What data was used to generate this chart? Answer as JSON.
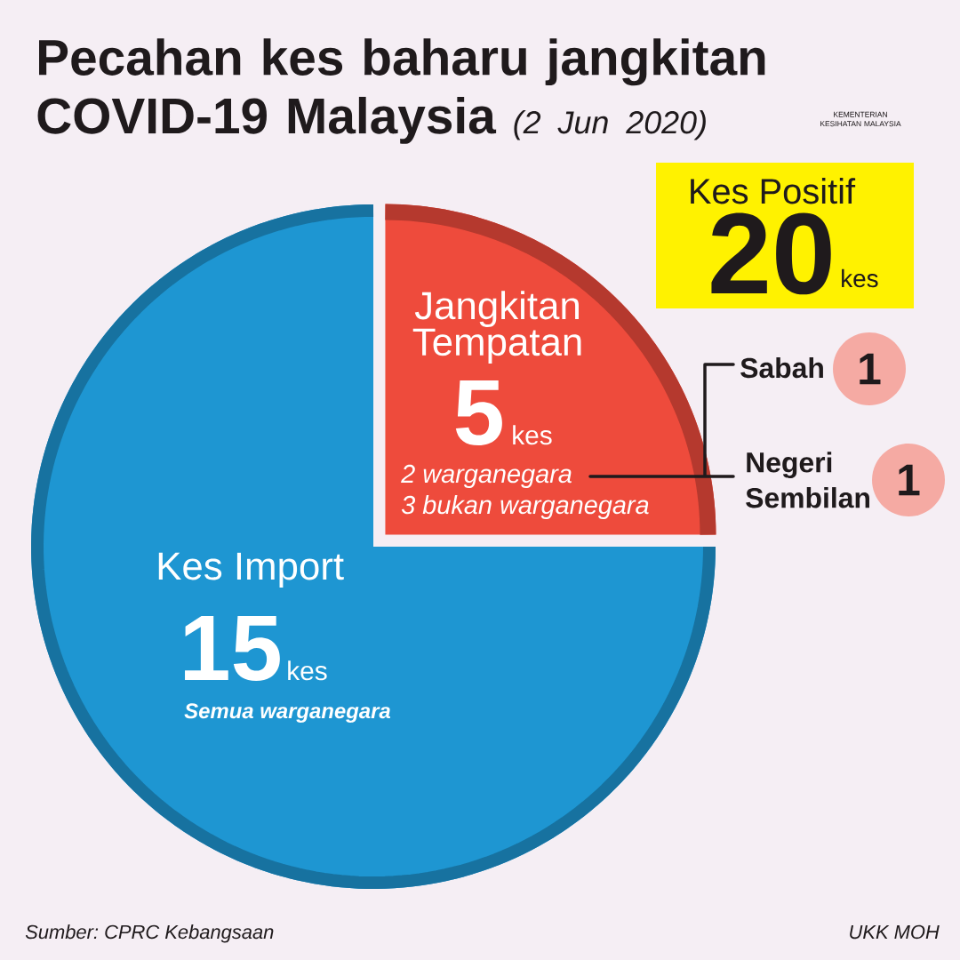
{
  "chart_data": {
    "type": "pie",
    "title": "Pecahan kes baharu jangkitan COVID-19 Malaysia",
    "subtitle": "(2 Jun 2020)",
    "categories": [
      "Jangkitan Tempatan",
      "Kes Import"
    ],
    "values": [
      5,
      15
    ],
    "colors": [
      "#ee4b3c",
      "#1e96d2"
    ],
    "data_labels": true,
    "annotations": [
      "2 warganegara",
      "3 bukan warganegara",
      "Semua warganegara",
      "kes",
      "kes",
      "Kes Positif",
      "20",
      "kes",
      "Sabah",
      "1",
      "Negeri Sembilan",
      "1",
      "KEMENTERIAN KESIHATAN MALAYSIA",
      "Sumber: CPRC Kebangsaan",
      "UKK MOH"
    ]
  }
}
